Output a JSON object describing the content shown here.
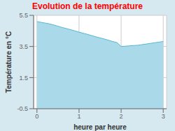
{
  "chart_data": {
    "type": "area",
    "title": "Evolution de la température",
    "xlabel": "heure par heure",
    "ylabel": "Température en °C",
    "x": [
      0.0,
      0.1,
      0.2,
      0.3,
      0.4,
      0.5,
      0.6,
      0.7,
      0.8,
      0.9,
      1.0,
      1.1,
      1.2,
      1.3,
      1.4,
      1.5,
      1.6,
      1.7,
      1.8,
      1.9,
      2.0,
      2.1,
      2.2,
      2.3,
      2.4,
      2.5,
      2.6,
      2.7,
      2.8,
      2.9,
      3.0
    ],
    "values": [
      5.1,
      5.05,
      5.0,
      4.95,
      4.88,
      4.8,
      4.72,
      4.65,
      4.58,
      4.5,
      4.42,
      4.35,
      4.28,
      4.2,
      4.12,
      4.05,
      3.98,
      3.9,
      3.82,
      3.75,
      3.5,
      3.52,
      3.54,
      3.56,
      3.58,
      3.62,
      3.66,
      3.7,
      3.74,
      3.78,
      3.82
    ],
    "color": "#55b8d0",
    "xlim": [
      -0.08,
      3.08
    ],
    "ylim": [
      -0.5,
      5.5
    ],
    "xticks": [
      0,
      1,
      2,
      3
    ],
    "yticks": [
      -0.5,
      1.5,
      3.5,
      5.5
    ],
    "grid": true
  }
}
